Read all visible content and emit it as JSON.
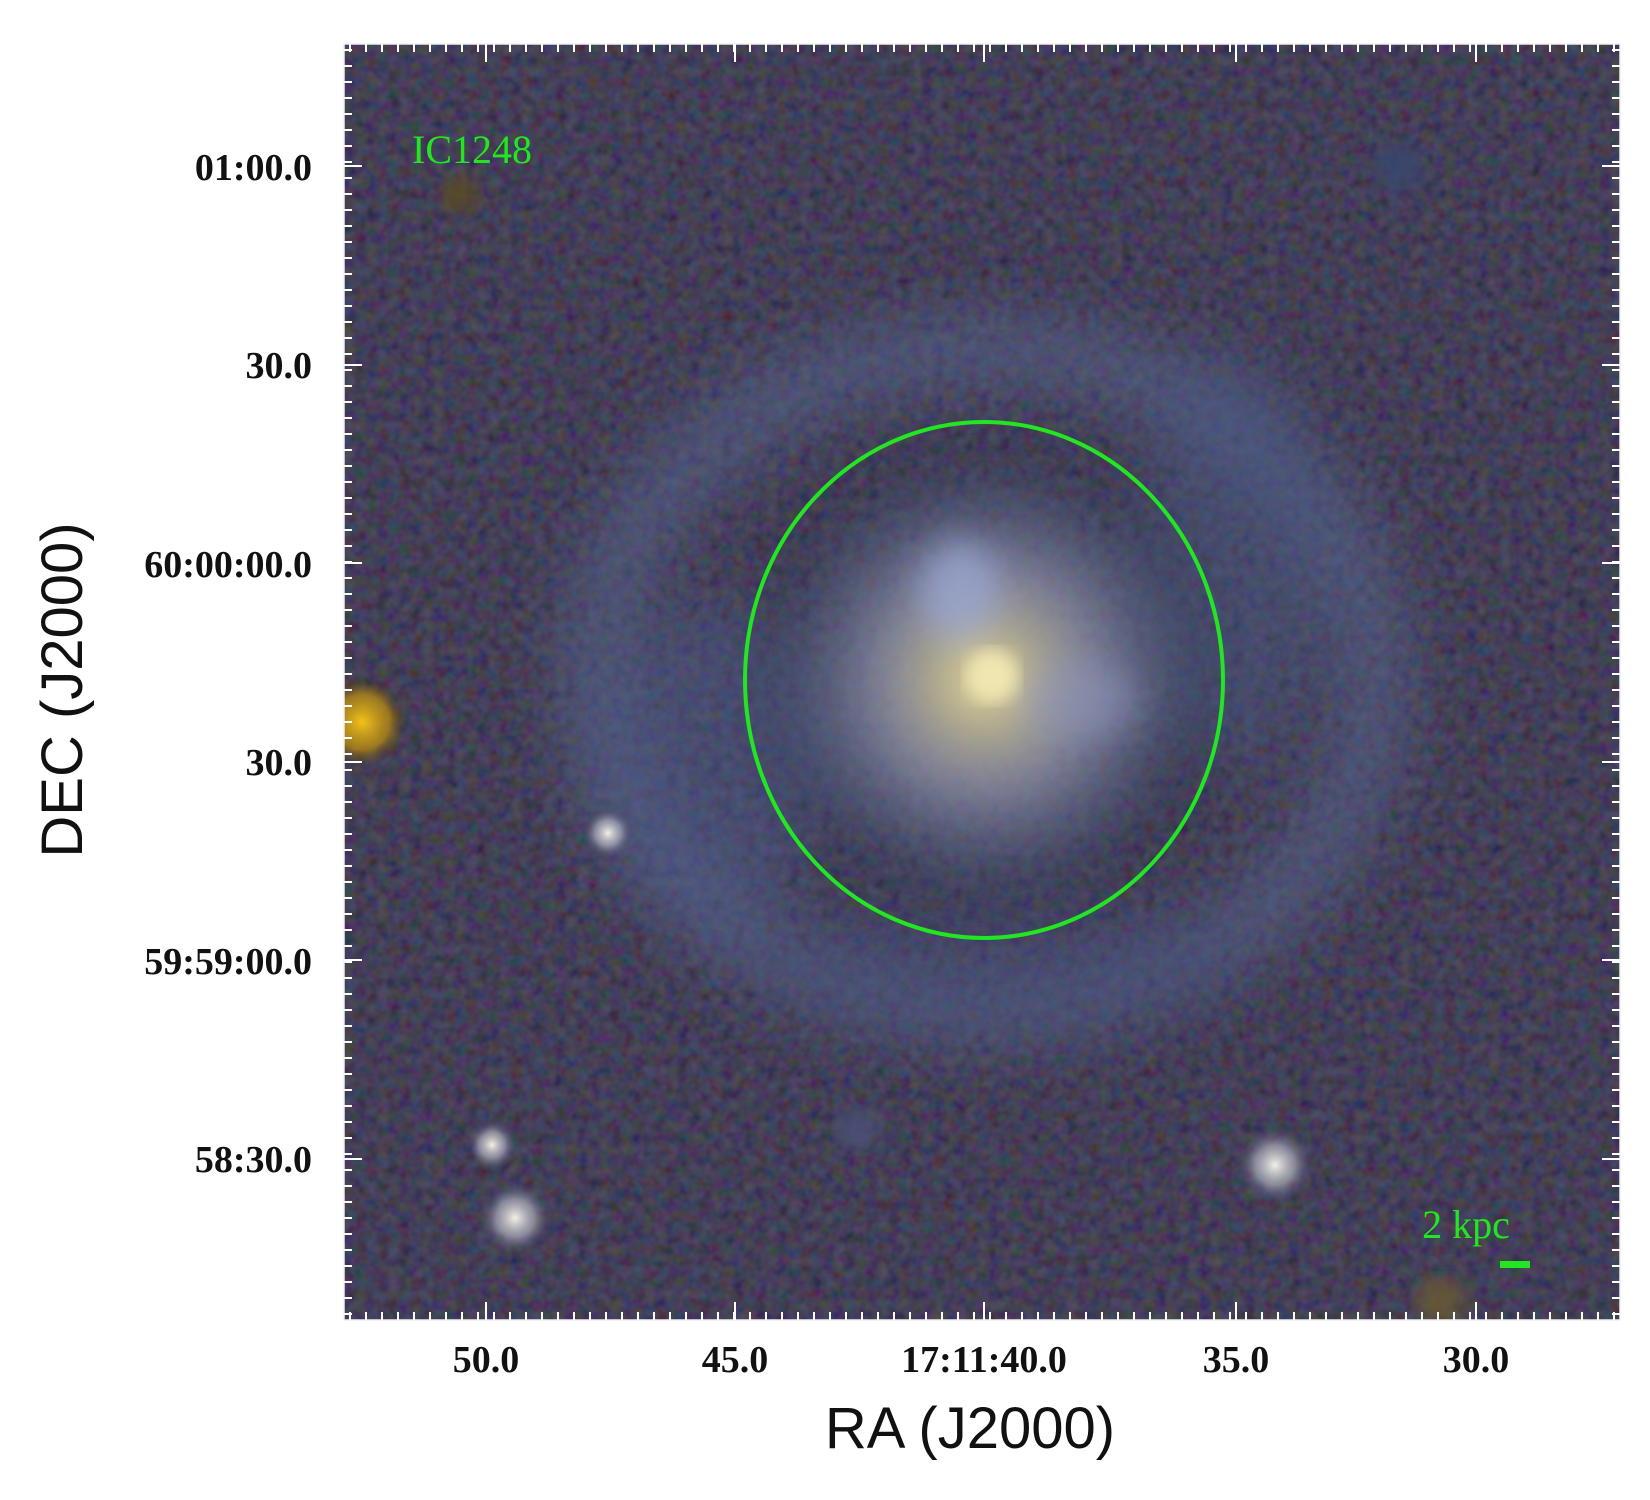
{
  "image": {
    "object_label": "IC1248",
    "scale_bar_label": "2 kpc",
    "overlay_color": "#22e622",
    "x_axis": {
      "title": "RA (J2000)",
      "ticks": [
        "50.0",
        "45.0",
        "17:11:40.0",
        "35.0",
        "30.0"
      ]
    },
    "y_axis": {
      "title": "DEC (J2000)",
      "ticks": [
        "01:00.0",
        "30.0",
        "60:00:00.0",
        "30.0",
        "59:59:00.0",
        "58:30.0"
      ]
    }
  }
}
